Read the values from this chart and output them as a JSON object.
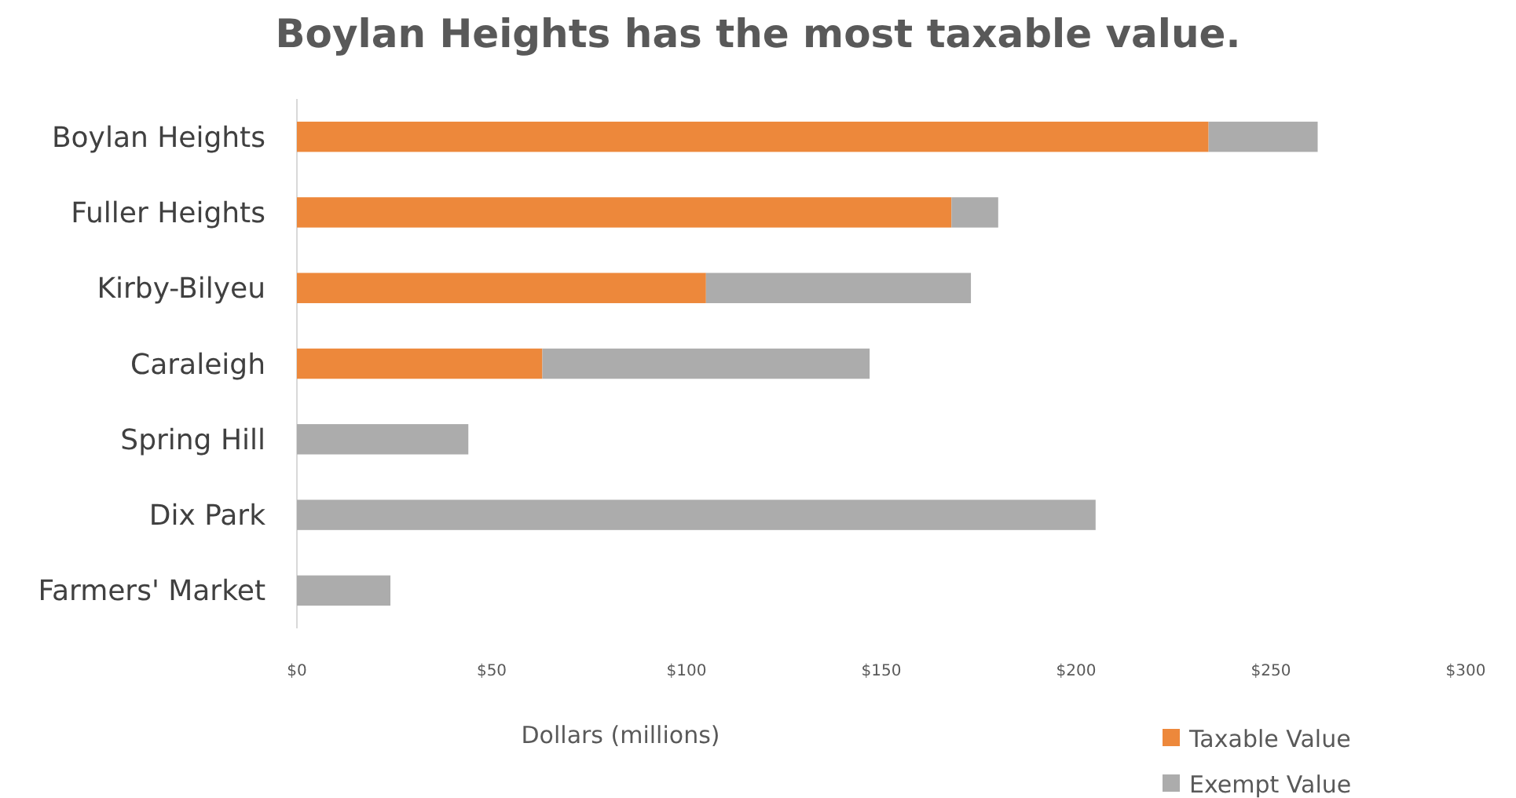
{
  "chart_data": {
    "type": "bar",
    "orientation": "horizontal",
    "stacked": true,
    "title": "Boylan Heights has the most taxable value.",
    "xlabel": "Dollars (millions)",
    "categories": [
      "Boylan Heights",
      "Fuller Heights",
      "Kirby-Bilyeu",
      "Caraleigh",
      "Spring Hill",
      "Dix Park",
      "Farmers' Market"
    ],
    "series": [
      {
        "name": "Taxable Value",
        "color": "#ed883b",
        "values": [
          234,
          168,
          105,
          63,
          0,
          0,
          0
        ]
      },
      {
        "name": "Exempt Value",
        "color": "#acacac",
        "values": [
          28,
          12,
          68,
          84,
          44,
          205,
          24
        ]
      }
    ],
    "xlim": [
      0,
      300
    ],
    "xticks": [
      {
        "value": 0,
        "label": "$0"
      },
      {
        "value": 50,
        "label": "$50"
      },
      {
        "value": 100,
        "label": "$100"
      },
      {
        "value": 150,
        "label": "$150"
      },
      {
        "value": 200,
        "label": "$200"
      },
      {
        "value": 250,
        "label": "$250"
      },
      {
        "value": 300,
        "label": "$300"
      }
    ],
    "grid": false,
    "legend": "bottom right"
  }
}
